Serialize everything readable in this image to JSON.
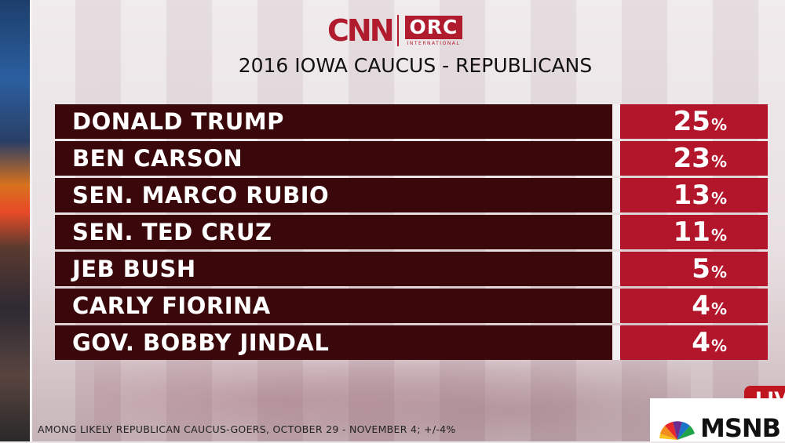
{
  "brand": {
    "logo_left": "CNN",
    "logo_right": "ORC",
    "logo_right_sub": "INTERNATIONAL"
  },
  "chart_data": {
    "type": "table",
    "title": "2016 IOWA CAUCUS - REPUBLICANS",
    "percent_symbol": "%",
    "rows": [
      {
        "name": "DONALD TRUMP",
        "value": 25
      },
      {
        "name": "BEN CARSON",
        "value": 23
      },
      {
        "name": "SEN. MARCO RUBIO",
        "value": 13
      },
      {
        "name": "SEN. TED CRUZ",
        "value": 11
      },
      {
        "name": "JEB BUSH",
        "value": 5
      },
      {
        "name": "CARLY FIORINA",
        "value": 4
      },
      {
        "name": "GOV. BOBBY JINDAL",
        "value": 4
      }
    ],
    "footnote": "AMONG LIKELY REPUBLICAN CAUCUS-GOERS, OCTOBER 29 - NOVEMBER 4; +/-4%"
  },
  "broadcast": {
    "live_label": "LIV",
    "network_label": "MSNB"
  },
  "colors": {
    "name_cell": "#3a070b",
    "value_cell": "#b3162b",
    "brand_red": "#b01c2e"
  }
}
